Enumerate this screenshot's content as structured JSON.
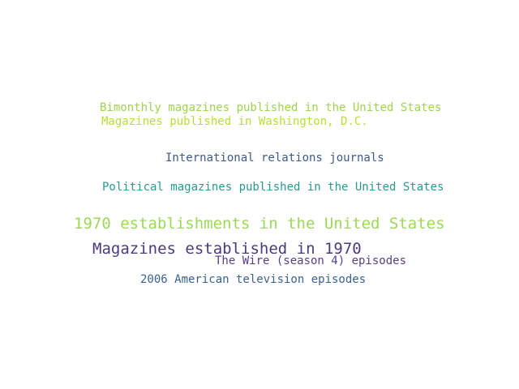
{
  "words": [
    {
      "text": "Bimonthly magazines published in the United States",
      "color": "#a0d44c"
    },
    {
      "text": "Magazines published in Washington, D.C.",
      "color": "#b8de35"
    },
    {
      "text": "International relations journals",
      "color": "#3b5b8c"
    },
    {
      "text": "Political magazines published in the United States",
      "color": "#2a9a8e"
    },
    {
      "text": "1970 establishments in the United States",
      "color": "#9ed85a"
    },
    {
      "text": "Magazines established in 1970",
      "color": "#4b3a7e"
    },
    {
      "text": "The Wire (season 4) episodes",
      "color": "#5a3f86"
    },
    {
      "text": "2006 American television episodes",
      "color": "#3a6190"
    }
  ]
}
